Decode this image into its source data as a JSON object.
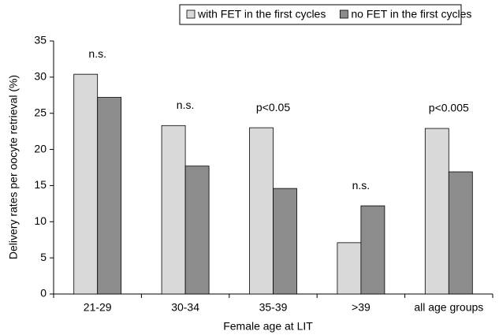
{
  "chart_data": {
    "type": "bar",
    "x_label": "Female age at LIT",
    "y_label": "Delivery rates per oocyte retrieval (%)",
    "categories": [
      "21-29",
      "30-34",
      "35-39",
      ">39",
      "all age groups"
    ],
    "series": [
      {
        "name": "with FET in the first cycles",
        "color": "#d9d9d9",
        "values": [
          30.4,
          23.3,
          23.0,
          7.1,
          22.9
        ]
      },
      {
        "name": "no FET in the first cycles",
        "color": "#8c8c8c",
        "values": [
          27.2,
          17.7,
          14.6,
          12.2,
          16.9
        ]
      }
    ],
    "annotations": [
      "n.s.",
      "n.s.",
      "p<0.05",
      "n.s.",
      "p<0.005"
    ],
    "ylim": [
      0,
      35
    ],
    "yticks": [
      0,
      5,
      10,
      15,
      20,
      25,
      30,
      35
    ],
    "grid": false
  }
}
